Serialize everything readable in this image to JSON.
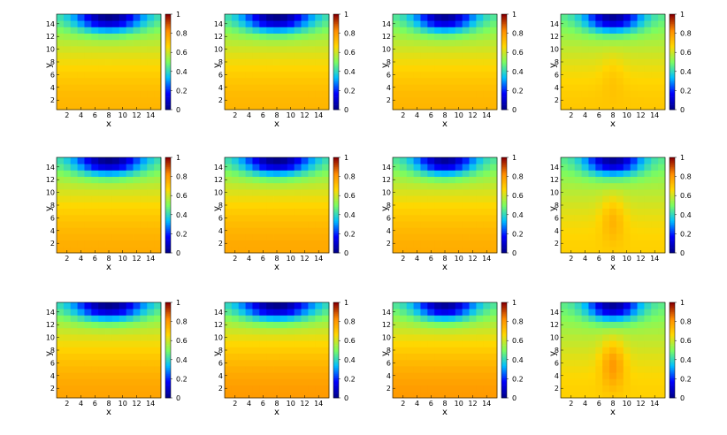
{
  "figure": {
    "rows": 3,
    "cols": 4,
    "colormap": [
      "#00008b",
      "#0000ff",
      "#00bfff",
      "#7cfc60",
      "#ffd700",
      "#ff8c00",
      "#8b0000"
    ]
  },
  "chart_data": [
    {
      "type": "heatmap",
      "xlabel": "x",
      "ylabel": "y",
      "x_ticks": [
        2,
        4,
        6,
        8,
        10,
        12,
        14
      ],
      "y_ticks": [
        2,
        4,
        6,
        8,
        10,
        12,
        14
      ],
      "xlim": [
        0.5,
        15.5
      ],
      "ylim": [
        0.5,
        15.5
      ],
      "colorbar_ticks": [
        "0",
        "0.2",
        "0.4",
        "0.6",
        "0.8",
        "1"
      ],
      "vrange": [
        0,
        1
      ],
      "cold_depth": 1.0,
      "cold_width": 3.4,
      "hot_center": 0.74,
      "hot_amp": 0.0
    },
    {
      "type": "heatmap",
      "xlabel": "x",
      "ylabel": "y",
      "x_ticks": [
        2,
        4,
        6,
        8,
        10,
        12,
        14
      ],
      "y_ticks": [
        2,
        4,
        6,
        8,
        10,
        12,
        14
      ],
      "xlim": [
        0.5,
        15.5
      ],
      "ylim": [
        0.5,
        15.5
      ],
      "colorbar_ticks": [
        "0",
        "0.2",
        "0.4",
        "0.6",
        "0.8",
        "1"
      ],
      "vrange": [
        0,
        1
      ],
      "cold_depth": 1.0,
      "cold_width": 3.4,
      "hot_center": 0.74,
      "hot_amp": 0.0
    },
    {
      "type": "heatmap",
      "xlabel": "x",
      "ylabel": "y",
      "x_ticks": [
        2,
        4,
        6,
        8,
        10,
        12,
        14
      ],
      "y_ticks": [
        2,
        4,
        6,
        8,
        10,
        12,
        14
      ],
      "xlim": [
        0.5,
        15.5
      ],
      "ylim": [
        0.5,
        15.5
      ],
      "colorbar_ticks": [
        "0",
        "0.2",
        "0.4",
        "0.6",
        "0.8",
        "1"
      ],
      "vrange": [
        0,
        1
      ],
      "cold_depth": 0.95,
      "cold_width": 3.0,
      "hot_center": 0.74,
      "hot_amp": 0.0
    },
    {
      "type": "heatmap",
      "xlabel": "x",
      "ylabel": "y",
      "x_ticks": [
        2,
        4,
        6,
        8,
        10,
        12,
        14
      ],
      "y_ticks": [
        2,
        4,
        6,
        8,
        10,
        12,
        14
      ],
      "xlim": [
        0.5,
        15.5
      ],
      "ylim": [
        0.5,
        15.5
      ],
      "colorbar_ticks": [
        "0",
        "0.2",
        "0.4",
        "0.6",
        "0.8",
        "1"
      ],
      "vrange": [
        0,
        1
      ],
      "cold_depth": 0.95,
      "cold_width": 2.8,
      "hot_center": 0.7,
      "hot_amp": 0.04
    },
    {
      "type": "heatmap",
      "xlabel": "x",
      "ylabel": "y",
      "x_ticks": [
        2,
        4,
        6,
        8,
        10,
        12,
        14
      ],
      "y_ticks": [
        2,
        4,
        6,
        8,
        10,
        12,
        14
      ],
      "xlim": [
        0.5,
        15.5
      ],
      "ylim": [
        0.5,
        15.5
      ],
      "colorbar_ticks": [
        "0",
        "0.2",
        "0.4",
        "0.6",
        "0.8",
        "1"
      ],
      "vrange": [
        0,
        1
      ],
      "cold_depth": 1.0,
      "cold_width": 3.4,
      "hot_center": 0.76,
      "hot_amp": 0.0
    },
    {
      "type": "heatmap",
      "xlabel": "x",
      "ylabel": "y",
      "x_ticks": [
        2,
        4,
        6,
        8,
        10,
        12,
        14
      ],
      "y_ticks": [
        2,
        4,
        6,
        8,
        10,
        12,
        14
      ],
      "xlim": [
        0.5,
        15.5
      ],
      "ylim": [
        0.5,
        15.5
      ],
      "colorbar_ticks": [
        "0",
        "0.2",
        "0.4",
        "0.6",
        "0.8",
        "1"
      ],
      "vrange": [
        0,
        1
      ],
      "cold_depth": 1.0,
      "cold_width": 3.4,
      "hot_center": 0.77,
      "hot_amp": 0.0
    },
    {
      "type": "heatmap",
      "xlabel": "x",
      "ylabel": "y",
      "x_ticks": [
        2,
        4,
        6,
        8,
        10,
        12,
        14
      ],
      "y_ticks": [
        2,
        4,
        6,
        8,
        10,
        12,
        14
      ],
      "xlim": [
        0.5,
        15.5
      ],
      "ylim": [
        0.5,
        15.5
      ],
      "colorbar_ticks": [
        "0",
        "0.2",
        "0.4",
        "0.6",
        "0.8",
        "1"
      ],
      "vrange": [
        0,
        1
      ],
      "cold_depth": 0.95,
      "cold_width": 3.0,
      "hot_center": 0.76,
      "hot_amp": 0.0
    },
    {
      "type": "heatmap",
      "xlabel": "x",
      "ylabel": "y",
      "x_ticks": [
        2,
        4,
        6,
        8,
        10,
        12,
        14
      ],
      "y_ticks": [
        2,
        4,
        6,
        8,
        10,
        12,
        14
      ],
      "xlim": [
        0.5,
        15.5
      ],
      "ylim": [
        0.5,
        15.5
      ],
      "colorbar_ticks": [
        "0",
        "0.2",
        "0.4",
        "0.6",
        "0.8",
        "1"
      ],
      "vrange": [
        0,
        1
      ],
      "cold_depth": 0.95,
      "cold_width": 2.8,
      "hot_center": 0.68,
      "hot_amp": 0.1
    },
    {
      "type": "heatmap",
      "xlabel": "x",
      "ylabel": "y",
      "x_ticks": [
        2,
        4,
        6,
        8,
        10,
        12,
        14
      ],
      "y_ticks": [
        2,
        4,
        6,
        8,
        10,
        12,
        14
      ],
      "xlim": [
        0.5,
        15.5
      ],
      "ylim": [
        0.5,
        15.5
      ],
      "colorbar_ticks": [
        "0",
        "0.2",
        "0.4",
        "0.6",
        "0.8",
        "1"
      ],
      "vrange": [
        0,
        1
      ],
      "cold_depth": 1.0,
      "cold_width": 3.5,
      "hot_center": 0.78,
      "hot_amp": 0.0
    },
    {
      "type": "heatmap",
      "xlabel": "x",
      "ylabel": "y",
      "x_ticks": [
        2,
        4,
        6,
        8,
        10,
        12,
        14
      ],
      "y_ticks": [
        2,
        4,
        6,
        8,
        10,
        12,
        14
      ],
      "xlim": [
        0.5,
        15.5
      ],
      "ylim": [
        0.5,
        15.5
      ],
      "colorbar_ticks": [
        "0",
        "0.2",
        "0.4",
        "0.6",
        "0.8",
        "1"
      ],
      "vrange": [
        0,
        1
      ],
      "cold_depth": 1.0,
      "cold_width": 3.6,
      "hot_center": 0.8,
      "hot_amp": 0.0
    },
    {
      "type": "heatmap",
      "xlabel": "x",
      "ylabel": "y",
      "x_ticks": [
        2,
        4,
        6,
        8,
        10,
        12,
        14
      ],
      "y_ticks": [
        2,
        4,
        6,
        8,
        10,
        12,
        14
      ],
      "xlim": [
        0.5,
        15.5
      ],
      "ylim": [
        0.5,
        15.5
      ],
      "colorbar_ticks": [
        "0",
        "0.2",
        "0.4",
        "0.6",
        "0.8",
        "1"
      ],
      "vrange": [
        0,
        1
      ],
      "cold_depth": 0.95,
      "cold_width": 3.0,
      "hot_center": 0.8,
      "hot_amp": 0.0
    },
    {
      "type": "heatmap",
      "xlabel": "x",
      "ylabel": "y",
      "x_ticks": [
        2,
        4,
        6,
        8,
        10,
        12,
        14
      ],
      "y_ticks": [
        2,
        4,
        6,
        8,
        10,
        12,
        14
      ],
      "xlim": [
        0.5,
        15.5
      ],
      "ylim": [
        0.5,
        15.5
      ],
      "colorbar_ticks": [
        "0",
        "0.2",
        "0.4",
        "0.6",
        "0.8",
        "1"
      ],
      "vrange": [
        0,
        1
      ],
      "cold_depth": 0.95,
      "cold_width": 2.6,
      "hot_center": 0.68,
      "hot_amp": 0.16
    }
  ]
}
